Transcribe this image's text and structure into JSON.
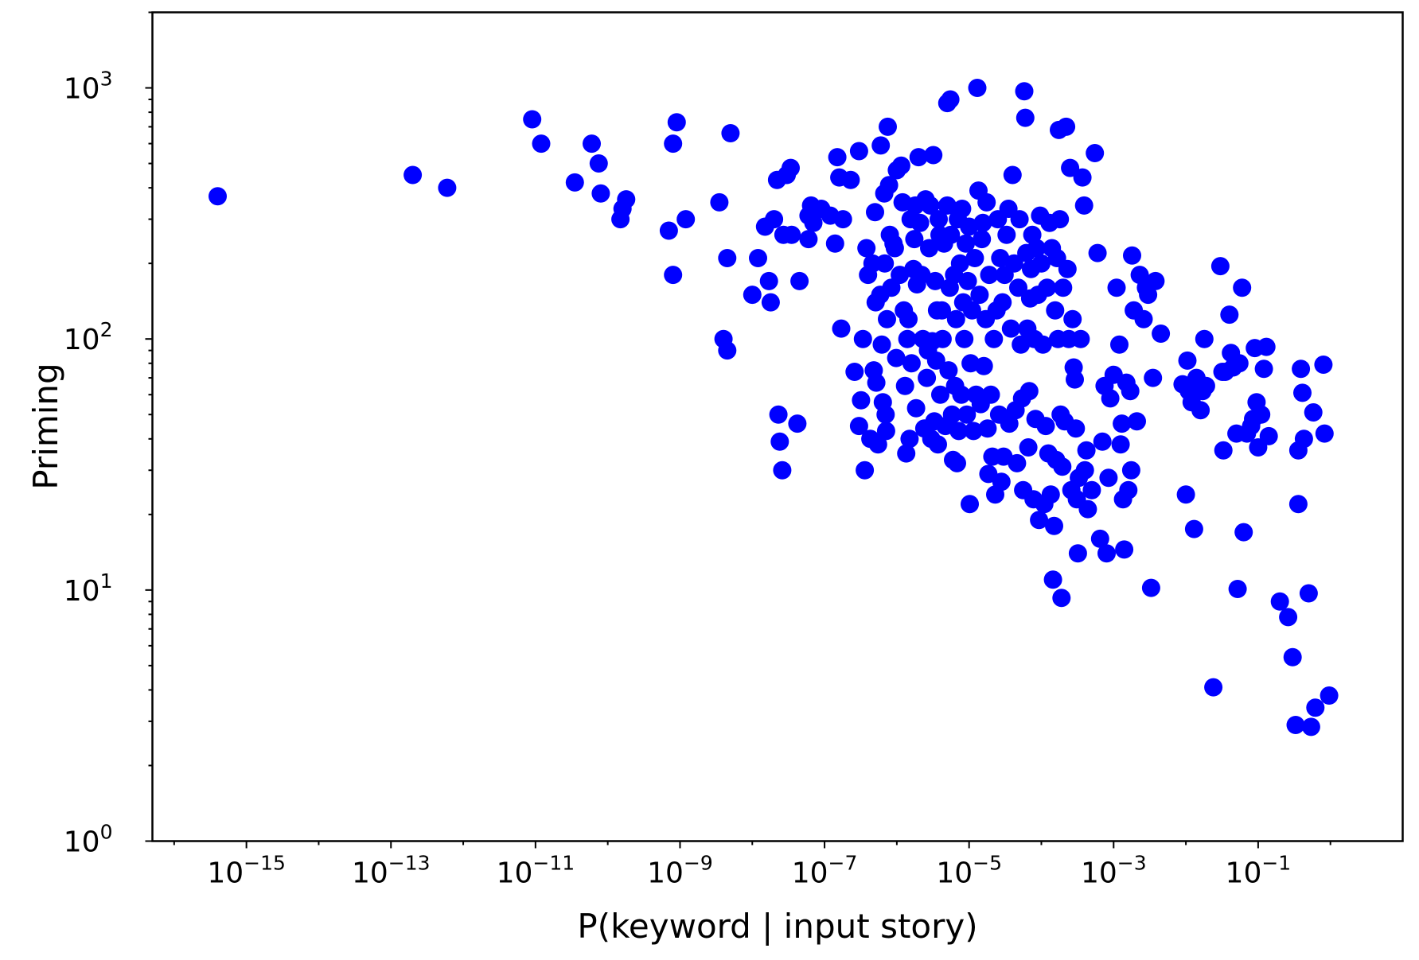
{
  "chart_data": {
    "type": "scatter",
    "xlabel": "P(keyword | input story)",
    "ylabel": "Priming",
    "x_scale": "log",
    "y_scale": "log",
    "xlim": [
      5e-17,
      10
    ],
    "ylim": [
      1,
      2000
    ],
    "x_ticks": [
      {
        "base": "10",
        "exp": "−15",
        "value": 1e-15
      },
      {
        "base": "10",
        "exp": "−13",
        "value": 1e-13
      },
      {
        "base": "10",
        "exp": "−11",
        "value": 1e-11
      },
      {
        "base": "10",
        "exp": "−9",
        "value": 1e-09
      },
      {
        "base": "10",
        "exp": "−7",
        "value": 1e-07
      },
      {
        "base": "10",
        "exp": "−5",
        "value": 1e-05
      },
      {
        "base": "10",
        "exp": "−3",
        "value": 0.001
      },
      {
        "base": "10",
        "exp": "−1",
        "value": 0.1
      }
    ],
    "y_ticks": [
      {
        "base": "10",
        "exp": "0",
        "value": 1
      },
      {
        "base": "10",
        "exp": "1",
        "value": 10
      },
      {
        "base": "10",
        "exp": "2",
        "value": 100
      },
      {
        "base": "10",
        "exp": "3",
        "value": 1000
      }
    ],
    "grid": false,
    "marker_color": "#0000ff",
    "points": [
      [
        4e-16,
        370
      ],
      [
        2e-13,
        450
      ],
      [
        6e-13,
        400
      ],
      [
        9e-12,
        750
      ],
      [
        1.2e-11,
        600
      ],
      [
        3.5e-11,
        420
      ],
      [
        6e-11,
        600
      ],
      [
        7.5e-11,
        500
      ],
      [
        8e-11,
        380
      ],
      [
        1.5e-10,
        300
      ],
      [
        1.6e-10,
        330
      ],
      [
        1.8e-10,
        360
      ],
      [
        7e-10,
        270
      ],
      [
        8e-10,
        600
      ],
      [
        8e-10,
        180
      ],
      [
        9e-10,
        730
      ],
      [
        1.2e-09,
        300
      ],
      [
        3.5e-09,
        350
      ],
      [
        4e-09,
        100
      ],
      [
        4.5e-09,
        90
      ],
      [
        4.5e-09,
        210
      ],
      [
        5e-09,
        660
      ],
      [
        1e-08,
        150
      ],
      [
        1.2e-08,
        210
      ],
      [
        1.5e-08,
        280
      ],
      [
        1.7e-08,
        170
      ],
      [
        1.8e-08,
        140
      ],
      [
        2e-08,
        300
      ],
      [
        2.2e-08,
        430
      ],
      [
        2.3e-08,
        50
      ],
      [
        2.4e-08,
        39
      ],
      [
        2.6e-08,
        30
      ],
      [
        2.7e-08,
        260
      ],
      [
        3e-08,
        450
      ],
      [
        3.4e-08,
        480
      ],
      [
        3.5e-08,
        260
      ],
      [
        4.2e-08,
        46
      ],
      [
        4.5e-08,
        170
      ],
      [
        6e-08,
        310
      ],
      [
        6e-08,
        250
      ],
      [
        6.5e-08,
        340
      ],
      [
        7e-08,
        290
      ],
      [
        9e-08,
        330
      ],
      [
        1.2e-07,
        310
      ],
      [
        1.4e-07,
        240
      ],
      [
        1.5e-07,
        530
      ],
      [
        1.6e-07,
        440
      ],
      [
        1.7e-07,
        110
      ],
      [
        1.8e-07,
        300
      ],
      [
        2.3e-07,
        430
      ],
      [
        2.6e-07,
        74
      ],
      [
        3e-07,
        560
      ],
      [
        3e-07,
        45
      ],
      [
        3.2e-07,
        57
      ],
      [
        3.4e-07,
        100
      ],
      [
        3.6e-07,
        30
      ],
      [
        3.8e-07,
        230
      ],
      [
        4e-07,
        180
      ],
      [
        4.3e-07,
        40
      ],
      [
        4.6e-07,
        200
      ],
      [
        4.8e-07,
        75
      ],
      [
        5e-07,
        320
      ],
      [
        5.1e-07,
        140
      ],
      [
        5.2e-07,
        67
      ],
      [
        5.5e-07,
        38
      ],
      [
        5.9e-07,
        150
      ],
      [
        6e-07,
        590
      ],
      [
        6.2e-07,
        95
      ],
      [
        6.4e-07,
        56
      ],
      [
        6.7e-07,
        380
      ],
      [
        6.8e-07,
        200
      ],
      [
        7e-07,
        50
      ],
      [
        7.1e-07,
        43
      ],
      [
        7.3e-07,
        120
      ],
      [
        7.5e-07,
        700
      ],
      [
        7.8e-07,
        410
      ],
      [
        8e-07,
        260
      ],
      [
        8.4e-07,
        160
      ],
      [
        9e-07,
        240
      ],
      [
        9.4e-07,
        230
      ],
      [
        9.8e-07,
        84
      ],
      [
        1e-06,
        470
      ],
      [
        1.1e-06,
        180
      ],
      [
        1.15e-06,
        490
      ],
      [
        1.2e-06,
        350
      ],
      [
        1.25e-06,
        130
      ],
      [
        1.3e-06,
        65
      ],
      [
        1.35e-06,
        35
      ],
      [
        1.4e-06,
        100
      ],
      [
        1.45e-06,
        120
      ],
      [
        1.5e-06,
        40
      ],
      [
        1.55e-06,
        300
      ],
      [
        1.6e-06,
        80
      ],
      [
        1.7e-06,
        190
      ],
      [
        1.75e-06,
        250
      ],
      [
        1.8e-06,
        340
      ],
      [
        1.85e-06,
        53
      ],
      [
        1.9e-06,
        165
      ],
      [
        2e-06,
        530
      ],
      [
        2.1e-06,
        290
      ],
      [
        2.2e-06,
        180
      ],
      [
        2.3e-06,
        100
      ],
      [
        2.4e-06,
        44
      ],
      [
        2.5e-06,
        360
      ],
      [
        2.6e-06,
        70
      ],
      [
        2.7e-06,
        90
      ],
      [
        2.8e-06,
        230
      ],
      [
        2.9e-06,
        340
      ],
      [
        3e-06,
        40
      ],
      [
        3.1e-06,
        98
      ],
      [
        3.2e-06,
        540
      ],
      [
        3.3e-06,
        47
      ],
      [
        3.4e-06,
        170
      ],
      [
        3.5e-06,
        82
      ],
      [
        3.6e-06,
        130
      ],
      [
        3.7e-06,
        38
      ],
      [
        3.8e-06,
        300
      ],
      [
        3.9e-06,
        260
      ],
      [
        4e-06,
        60
      ],
      [
        4.2e-06,
        130
      ],
      [
        4.3e-06,
        100
      ],
      [
        4.5e-06,
        240
      ],
      [
        4.7e-06,
        45
      ],
      [
        5e-06,
        870
      ],
      [
        5e-06,
        340
      ],
      [
        5.2e-06,
        75
      ],
      [
        5.4e-06,
        160
      ],
      [
        5.5e-06,
        900
      ],
      [
        5.6e-06,
        260
      ],
      [
        5.8e-06,
        50
      ],
      [
        6e-06,
        33
      ],
      [
        6.2e-06,
        180
      ],
      [
        6.4e-06,
        65
      ],
      [
        6.6e-06,
        120
      ],
      [
        6.8e-06,
        32
      ],
      [
        7e-06,
        300
      ],
      [
        7.2e-06,
        43
      ],
      [
        7.5e-06,
        200
      ],
      [
        7.8e-06,
        60
      ],
      [
        8e-06,
        330
      ],
      [
        8.3e-06,
        140
      ],
      [
        8.6e-06,
        100
      ],
      [
        9e-06,
        240
      ],
      [
        9.3e-06,
        50
      ],
      [
        9.6e-06,
        170
      ],
      [
        1e-05,
        280
      ],
      [
        1.02e-05,
        22
      ],
      [
        1.05e-05,
        80
      ],
      [
        1.1e-05,
        130
      ],
      [
        1.15e-05,
        43
      ],
      [
        1.2e-05,
        210
      ],
      [
        1.25e-05,
        60
      ],
      [
        1.3e-05,
        1000
      ],
      [
        1.35e-05,
        390
      ],
      [
        1.4e-05,
        150
      ],
      [
        1.45e-05,
        55
      ],
      [
        1.5e-05,
        250
      ],
      [
        1.55e-05,
        290
      ],
      [
        1.6e-05,
        78
      ],
      [
        1.7e-05,
        120
      ],
      [
        1.75e-05,
        350
      ],
      [
        1.8e-05,
        44
      ],
      [
        1.85e-05,
        29
      ],
      [
        1.9e-05,
        180
      ],
      [
        2e-05,
        60
      ],
      [
        2.1e-05,
        34
      ],
      [
        2.2e-05,
        100
      ],
      [
        2.3e-05,
        24
      ],
      [
        2.4e-05,
        130
      ],
      [
        2.5e-05,
        300
      ],
      [
        2.6e-05,
        50
      ],
      [
        2.7e-05,
        210
      ],
      [
        2.8e-05,
        27
      ],
      [
        2.9e-05,
        140
      ],
      [
        3e-05,
        34
      ],
      [
        3.1e-05,
        180
      ],
      [
        3.3e-05,
        260
      ],
      [
        3.5e-05,
        330
      ],
      [
        3.6e-05,
        46
      ],
      [
        3.8e-05,
        110
      ],
      [
        4e-05,
        450
      ],
      [
        4.2e-05,
        200
      ],
      [
        4.4e-05,
        52
      ],
      [
        4.6e-05,
        32
      ],
      [
        4.8e-05,
        160
      ],
      [
        5e-05,
        300
      ],
      [
        5.2e-05,
        95
      ],
      [
        5.4e-05,
        58
      ],
      [
        5.6e-05,
        25
      ],
      [
        5.8e-05,
        970
      ],
      [
        6e-05,
        760
      ],
      [
        6.2e-05,
        220
      ],
      [
        6.4e-05,
        110
      ],
      [
        6.6e-05,
        37
      ],
      [
        6.8e-05,
        62
      ],
      [
        7e-05,
        145
      ],
      [
        7.2e-05,
        190
      ],
      [
        7.5e-05,
        260
      ],
      [
        7.8e-05,
        23
      ],
      [
        8e-05,
        100
      ],
      [
        8.3e-05,
        48
      ],
      [
        8.6e-05,
        230
      ],
      [
        9e-05,
        150
      ],
      [
        9.3e-05,
        19
      ],
      [
        9.6e-05,
        310
      ],
      [
        0.0001,
        200
      ],
      [
        0.000105,
        95
      ],
      [
        0.00011,
        22
      ],
      [
        0.000115,
        45
      ],
      [
        0.00012,
        160
      ],
      [
        0.000125,
        35
      ],
      [
        0.00013,
        290
      ],
      [
        0.000135,
        24
      ],
      [
        0.00014,
        230
      ],
      [
        0.000145,
        11
      ],
      [
        0.00015,
        18
      ],
      [
        0.000155,
        130
      ],
      [
        0.00016,
        33
      ],
      [
        0.000165,
        210
      ],
      [
        0.00017,
        100
      ],
      [
        0.000175,
        680
      ],
      [
        0.00018,
        300
      ],
      [
        0.000185,
        50
      ],
      [
        0.00019,
        9.3
      ],
      [
        0.000195,
        31
      ],
      [
        0.0002,
        160
      ],
      [
        0.00021,
        47
      ],
      [
        0.00022,
        700
      ],
      [
        0.00023,
        190
      ],
      [
        0.00024,
        100
      ],
      [
        0.00025,
        480
      ],
      [
        0.00026,
        25
      ],
      [
        0.00027,
        120
      ],
      [
        0.00028,
        77
      ],
      [
        0.00029,
        69
      ],
      [
        0.0003,
        44
      ],
      [
        0.00031,
        23
      ],
      [
        0.00032,
        14
      ],
      [
        0.00033,
        28
      ],
      [
        0.00035,
        100
      ],
      [
        0.00037,
        440
      ],
      [
        0.00039,
        340
      ],
      [
        0.0004,
        30
      ],
      [
        0.00042,
        36
      ],
      [
        0.00044,
        21
      ],
      [
        0.0005,
        25
      ],
      [
        0.00055,
        550
      ],
      [
        0.0006,
        220
      ],
      [
        0.00065,
        16
      ],
      [
        0.0007,
        39
      ],
      [
        0.00075,
        65
      ],
      [
        0.0008,
        14
      ],
      [
        0.00085,
        28
      ],
      [
        0.0009,
        58
      ],
      [
        0.001,
        72
      ],
      [
        0.0011,
        160
      ],
      [
        0.0012,
        95
      ],
      [
        0.00125,
        38
      ],
      [
        0.0013,
        46
      ],
      [
        0.00135,
        23
      ],
      [
        0.0014,
        14.5
      ],
      [
        0.0015,
        67
      ],
      [
        0.0016,
        25
      ],
      [
        0.0017,
        62
      ],
      [
        0.00175,
        30
      ],
      [
        0.0018,
        215
      ],
      [
        0.0019,
        130
      ],
      [
        0.0021,
        47
      ],
      [
        0.0023,
        180
      ],
      [
        0.0026,
        120
      ],
      [
        0.0028,
        160
      ],
      [
        0.003,
        150
      ],
      [
        0.0033,
        10.2
      ],
      [
        0.0035,
        70
      ],
      [
        0.0038,
        170
      ],
      [
        0.0045,
        105
      ],
      [
        0.009,
        66
      ],
      [
        0.01,
        24
      ],
      [
        0.0105,
        82
      ],
      [
        0.011,
        62
      ],
      [
        0.012,
        56
      ],
      [
        0.013,
        17.5
      ],
      [
        0.014,
        70
      ],
      [
        0.016,
        52
      ],
      [
        0.017,
        62
      ],
      [
        0.018,
        100
      ],
      [
        0.019,
        65
      ],
      [
        0.024,
        4.1
      ],
      [
        0.03,
        195
      ],
      [
        0.032,
        74
      ],
      [
        0.033,
        36
      ],
      [
        0.035,
        74
      ],
      [
        0.04,
        125
      ],
      [
        0.042,
        88
      ],
      [
        0.045,
        77
      ],
      [
        0.05,
        42
      ],
      [
        0.052,
        10.1
      ],
      [
        0.055,
        80
      ],
      [
        0.06,
        160
      ],
      [
        0.063,
        17
      ],
      [
        0.07,
        42
      ],
      [
        0.08,
        45
      ],
      [
        0.085,
        48
      ],
      [
        0.09,
        92
      ],
      [
        0.095,
        56
      ],
      [
        0.1,
        37
      ],
      [
        0.11,
        50
      ],
      [
        0.12,
        76
      ],
      [
        0.13,
        93
      ],
      [
        0.14,
        41
      ],
      [
        0.2,
        9
      ],
      [
        0.26,
        7.8
      ],
      [
        0.3,
        5.4
      ],
      [
        0.33,
        2.9
      ],
      [
        0.36,
        22
      ],
      [
        0.36,
        36
      ],
      [
        0.39,
        76
      ],
      [
        0.41,
        61
      ],
      [
        0.43,
        40
      ],
      [
        0.5,
        9.7
      ],
      [
        0.54,
        2.85
      ],
      [
        0.58,
        51
      ],
      [
        0.62,
        3.4
      ],
      [
        0.8,
        79
      ],
      [
        0.83,
        42
      ],
      [
        0.96,
        3.8
      ]
    ]
  }
}
